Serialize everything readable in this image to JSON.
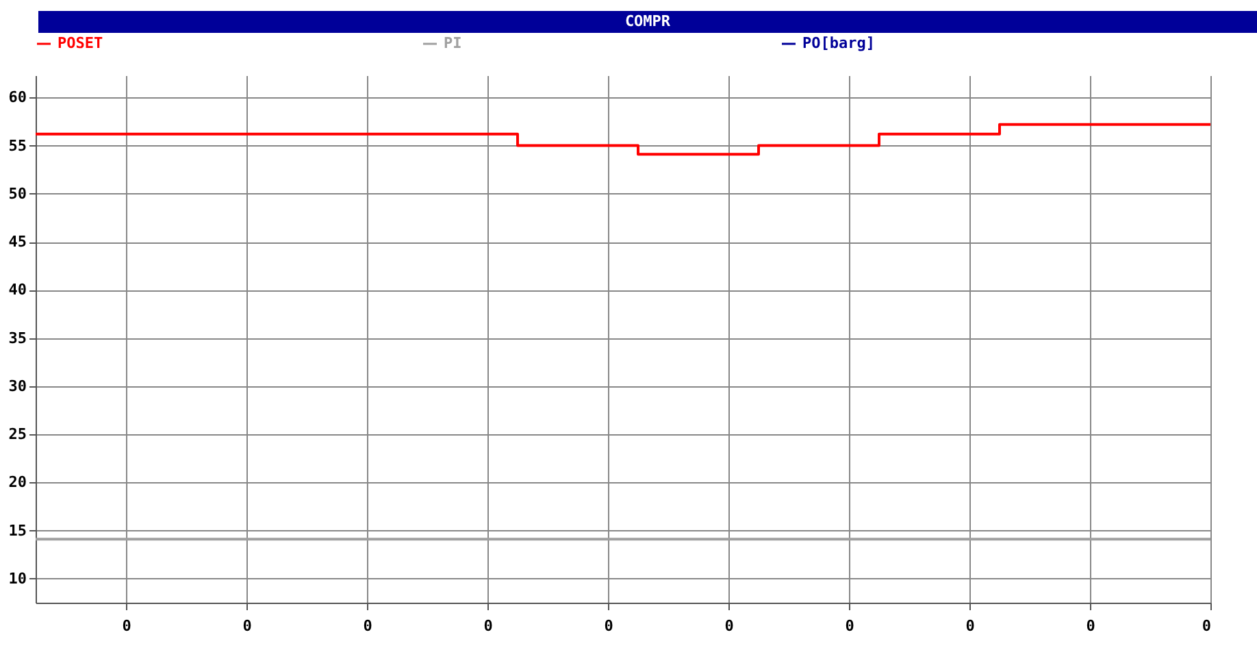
{
  "chart_data": {
    "type": "step",
    "title": "COMPR",
    "categories": [
      null,
      null,
      null,
      "0",
      null,
      null,
      null,
      "0",
      null,
      null,
      null,
      "0",
      null,
      null,
      null,
      "0",
      null,
      null,
      null,
      "0",
      null,
      null,
      null,
      "0",
      null,
      null,
      null,
      "0",
      null,
      null,
      null,
      "0",
      null,
      null,
      null,
      "0",
      null,
      null,
      null,
      "0"
    ],
    "series": [
      {
        "name": "POSET",
        "color": "#ff0000",
        "values": [
          56.2,
          56.2,
          56.2,
          56.2,
          56.2,
          56.2,
          56.2,
          56.2,
          56.2,
          56.2,
          56.2,
          56.2,
          56.2,
          56.2,
          56.2,
          56.2,
          55,
          55,
          55,
          55,
          54.1,
          54.1,
          54.1,
          54.1,
          55,
          55,
          55,
          55,
          56.2,
          56.2,
          56.2,
          56.2,
          57.2,
          57.2,
          57.2,
          57.2,
          57.2,
          57.2,
          57.2,
          57.2
        ]
      },
      {
        "name": "PI",
        "color": "#a0a0a0",
        "values": [
          14.1,
          14.1,
          14.1,
          14.1,
          14.1,
          14.1,
          14.1,
          14.1,
          14.1,
          14.1,
          14.1,
          14.1,
          14.1,
          14.1,
          14.1,
          14.1,
          14.1,
          14.1,
          14.1,
          14.1,
          14.1,
          14.1,
          14.1,
          14.1,
          14.1,
          14.1,
          14.1,
          14.1,
          14.1,
          14.1,
          14.1,
          14.1,
          14.1,
          14.1,
          14.1,
          14.1,
          14.1,
          14.1,
          14.1,
          14.1
        ]
      },
      {
        "name": "PO[barg]",
        "color": "#000099",
        "values": [
          null,
          null,
          null,
          null,
          null,
          null,
          null,
          null,
          null,
          null,
          null,
          null,
          null,
          null,
          null,
          null,
          null,
          null,
          null,
          null,
          null,
          null,
          null,
          null,
          null,
          null,
          null,
          null,
          null,
          null,
          null,
          null,
          null,
          null,
          null,
          null,
          null,
          null,
          null,
          null
        ]
      }
    ],
    "ylim": [
      7.5,
      62.3
    ],
    "yticks": [
      10,
      15,
      20,
      25,
      30,
      35,
      40,
      45,
      50,
      55,
      60
    ],
    "grid": true,
    "legend": "top"
  }
}
